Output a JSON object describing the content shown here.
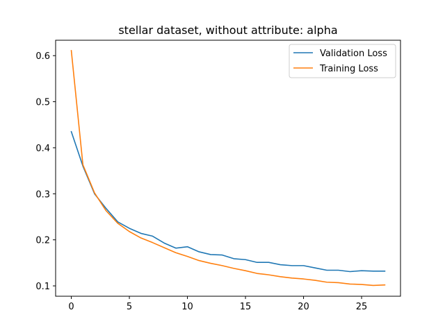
{
  "chart_data": {
    "type": "line",
    "title": "stellar dataset, without attribute: alpha",
    "xlabel": "",
    "ylabel": "",
    "xlim": [
      -1.35,
      28.35
    ],
    "ylim": [
      0.0775,
      0.6335
    ],
    "xticks": [
      0,
      5,
      10,
      15,
      20,
      25
    ],
    "yticks": [
      0.1,
      0.2,
      0.3,
      0.4,
      0.5,
      0.6
    ],
    "ytick_labels": [
      "0.1",
      "0.2",
      "0.3",
      "0.4",
      "0.5",
      "0.6"
    ],
    "grid": false,
    "legend_position": "top-right",
    "x": [
      0,
      1,
      2,
      3,
      4,
      5,
      6,
      7,
      8,
      9,
      10,
      11,
      12,
      13,
      14,
      15,
      16,
      17,
      18,
      19,
      20,
      21,
      22,
      23,
      24,
      25,
      26,
      27
    ],
    "series": [
      {
        "name": "Validation Loss",
        "color": "#1f77b4",
        "values": [
          0.435,
          0.36,
          0.3,
          0.268,
          0.239,
          0.225,
          0.214,
          0.208,
          0.193,
          0.182,
          0.185,
          0.174,
          0.168,
          0.167,
          0.159,
          0.157,
          0.151,
          0.151,
          0.146,
          0.144,
          0.144,
          0.139,
          0.134,
          0.134,
          0.131,
          0.133,
          0.132,
          0.132
        ]
      },
      {
        "name": "Training Loss",
        "color": "#ff7f0e",
        "values": [
          0.611,
          0.363,
          0.302,
          0.263,
          0.236,
          0.218,
          0.204,
          0.194,
          0.183,
          0.172,
          0.164,
          0.155,
          0.149,
          0.144,
          0.138,
          0.133,
          0.127,
          0.124,
          0.12,
          0.117,
          0.115,
          0.112,
          0.108,
          0.107,
          0.104,
          0.103,
          0.101,
          0.102
        ]
      }
    ]
  }
}
